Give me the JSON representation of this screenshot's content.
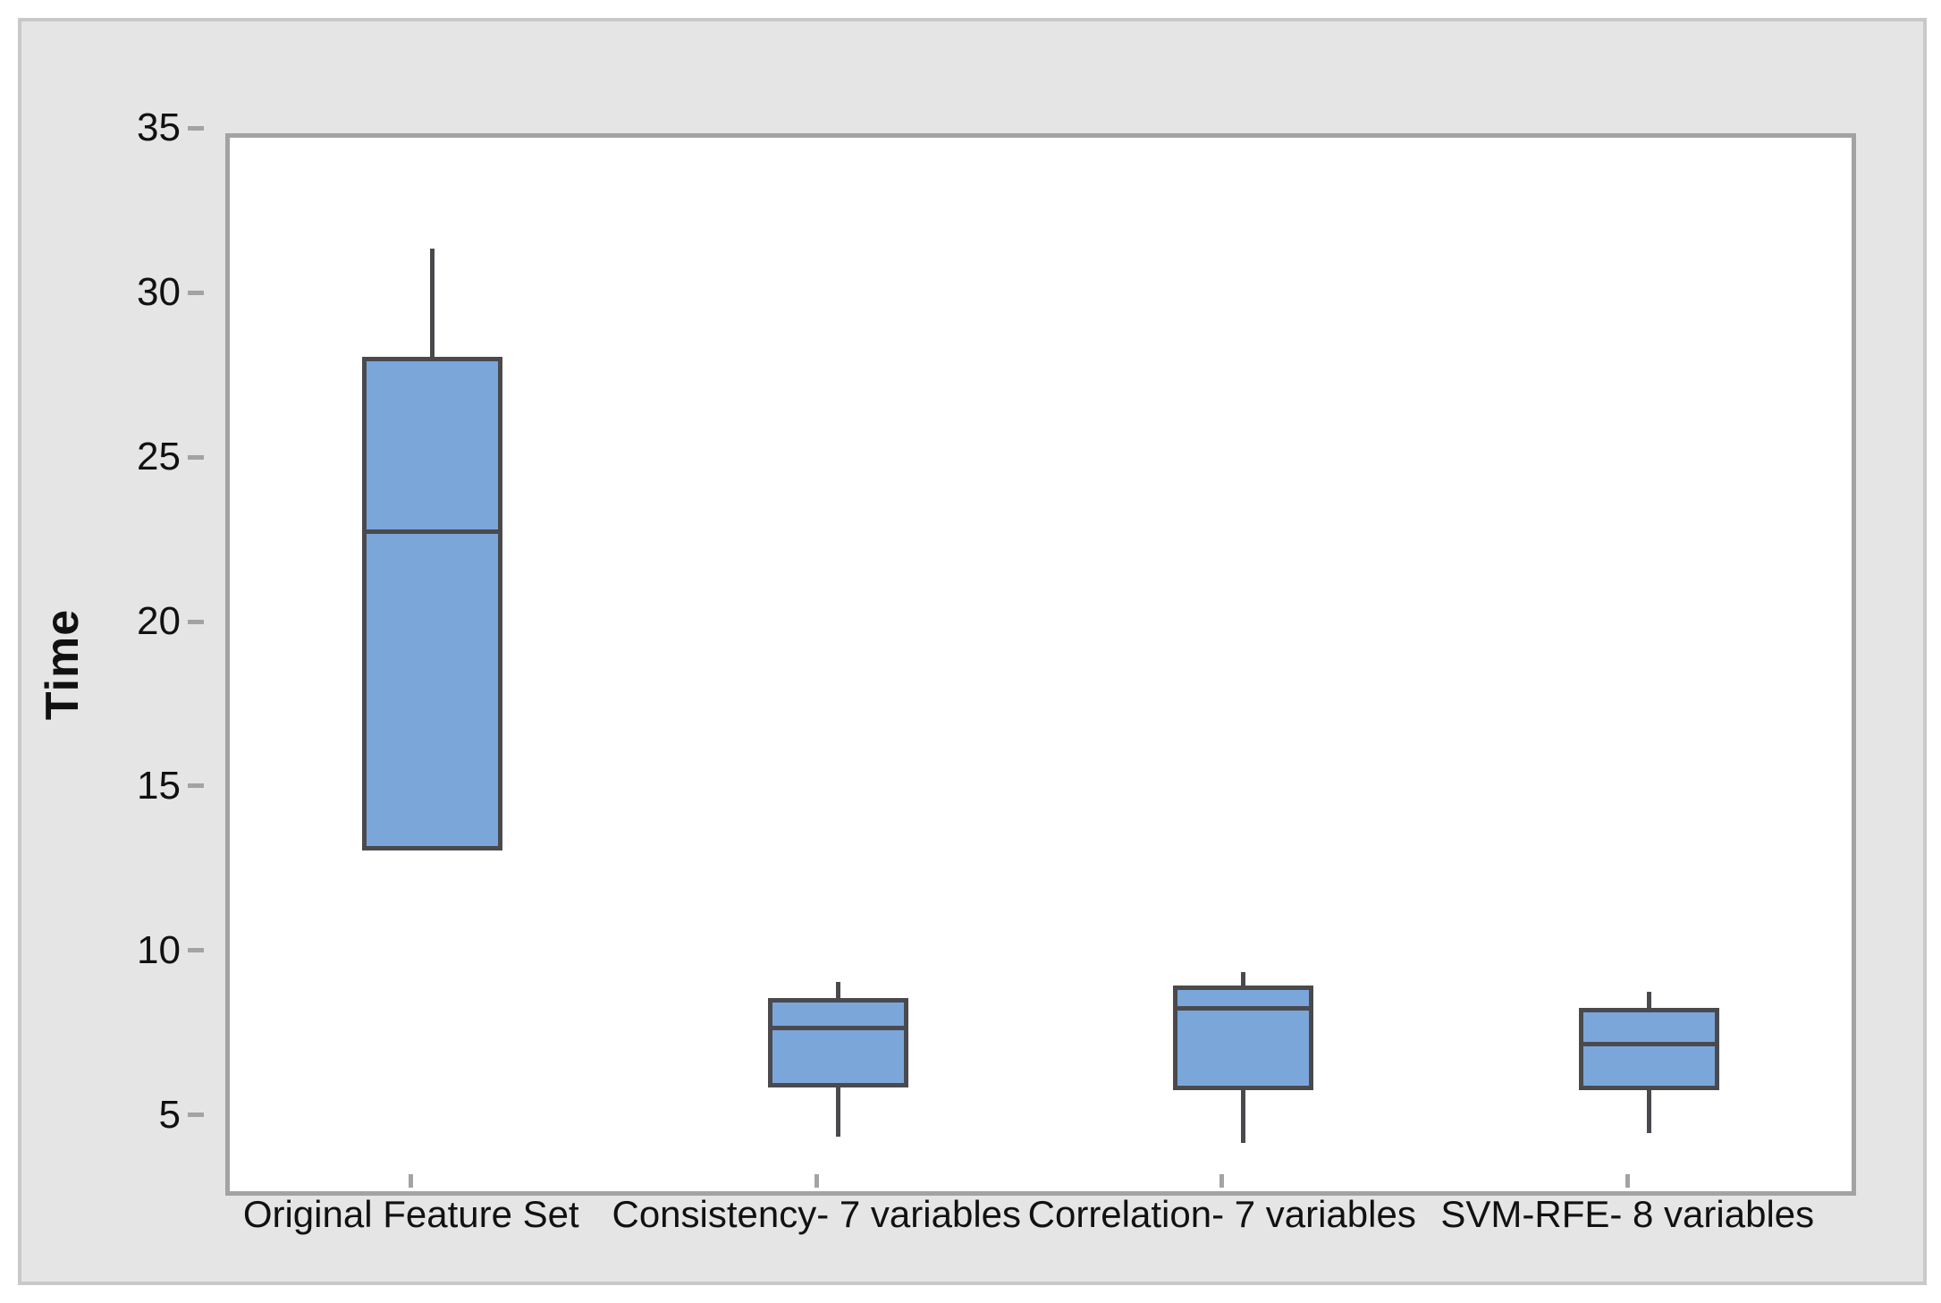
{
  "figure": {
    "background_color": "#E5E5E5",
    "figure_border_color": "#C9C9C9",
    "plot_background_color": "#FFFFFF",
    "axis_frame_color": "#A3A3A3",
    "box_fill_color": "#7BA6DA",
    "box_stroke_color": "#4A4A4E"
  },
  "chart_data": {
    "type": "box",
    "title": "",
    "xlabel": "",
    "ylabel": "Time",
    "grid": false,
    "legend": "none",
    "ylim": [
      3.2,
      35.5
    ],
    "yticks": [
      5,
      10,
      15,
      20,
      25,
      30,
      35
    ],
    "categories": [
      "Original Feature Set",
      "Consistency- 7 variables",
      "Correlation- 7 variables",
      "SVM-RFE- 8 variables"
    ],
    "series": [
      {
        "name": "Original Feature Set",
        "whisker_low": 13.7,
        "q1": 13.7,
        "median": 23.4,
        "q3": 28.7,
        "whisker_high": 32.0
      },
      {
        "name": "Consistency- 7 variables",
        "whisker_low": 5.0,
        "q1": 6.5,
        "median": 8.3,
        "q3": 9.2,
        "whisker_high": 9.7
      },
      {
        "name": "Correlation- 7 variables",
        "whisker_low": 4.8,
        "q1": 6.4,
        "median": 8.9,
        "q3": 9.6,
        "whisker_high": 10.0
      },
      {
        "name": "SVM-RFE- 8 variables",
        "whisker_low": 5.1,
        "q1": 6.4,
        "median": 7.8,
        "q3": 8.9,
        "whisker_high": 9.4
      }
    ]
  }
}
